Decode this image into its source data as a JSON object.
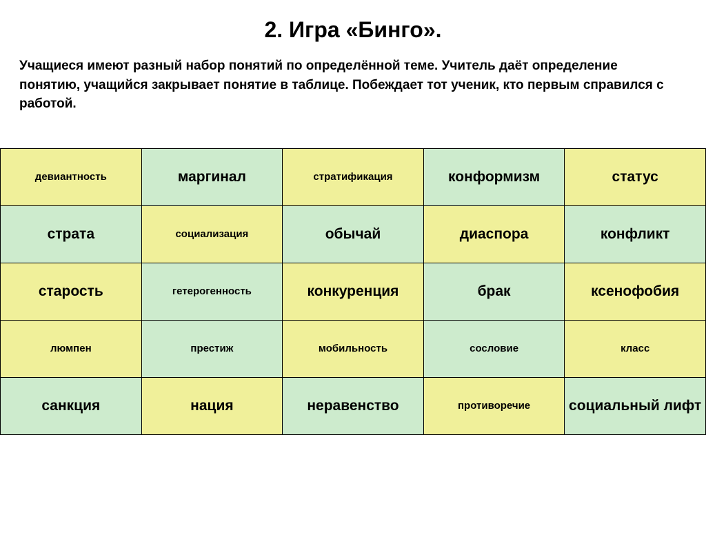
{
  "title": "2. Игра «Бинго».",
  "description": "Учащиеся имеют разный набор понятий по определённой теме. Учитель даёт определение понятию, учащийся закрывает понятие в таблице. Побеждает тот ученик, кто первым справился с работой.",
  "table": {
    "type": "table",
    "columns": 5,
    "rows": 5,
    "colors": {
      "yellow": "#f0f09a",
      "green": "#cdebcd",
      "border": "#000000",
      "text": "#000000"
    },
    "small_fontsize": 15,
    "large_fontsize": 21,
    "border_width": 1,
    "cells": [
      [
        {
          "text": "девиантность",
          "color": "yellow",
          "size": "small"
        },
        {
          "text": "маргинал",
          "color": "green",
          "size": "large"
        },
        {
          "text": "стратификация",
          "color": "yellow",
          "size": "small"
        },
        {
          "text": "конформизм",
          "color": "green",
          "size": "large"
        },
        {
          "text": "статус",
          "color": "yellow",
          "size": "large"
        }
      ],
      [
        {
          "text": "страта",
          "color": "green",
          "size": "large"
        },
        {
          "text": "социализация",
          "color": "yellow",
          "size": "small"
        },
        {
          "text": "обычай",
          "color": "green",
          "size": "large"
        },
        {
          "text": "диаспора",
          "color": "yellow",
          "size": "large"
        },
        {
          "text": "конфликт",
          "color": "green",
          "size": "large"
        }
      ],
      [
        {
          "text": "старость",
          "color": "yellow",
          "size": "large"
        },
        {
          "text": "гетерогенность",
          "color": "green",
          "size": "small"
        },
        {
          "text": "конкуренция",
          "color": "yellow",
          "size": "large"
        },
        {
          "text": "брак",
          "color": "green",
          "size": "large"
        },
        {
          "text": "ксенофобия",
          "color": "yellow",
          "size": "large"
        }
      ],
      [
        {
          "text": "люмпен",
          "color": "yellow",
          "size": "small"
        },
        {
          "text": "престиж",
          "color": "green",
          "size": "small"
        },
        {
          "text": "мобильность",
          "color": "yellow",
          "size": "small"
        },
        {
          "text": "сословие",
          "color": "green",
          "size": "small"
        },
        {
          "text": "класс",
          "color": "yellow",
          "size": "small"
        }
      ],
      [
        {
          "text": "санкция",
          "color": "green",
          "size": "large"
        },
        {
          "text": "нация",
          "color": "yellow",
          "size": "large"
        },
        {
          "text": "неравенство",
          "color": "green",
          "size": "large"
        },
        {
          "text": "противоречие",
          "color": "yellow",
          "size": "small"
        },
        {
          "text": "социальный лифт",
          "color": "green",
          "size": "large"
        }
      ]
    ]
  }
}
